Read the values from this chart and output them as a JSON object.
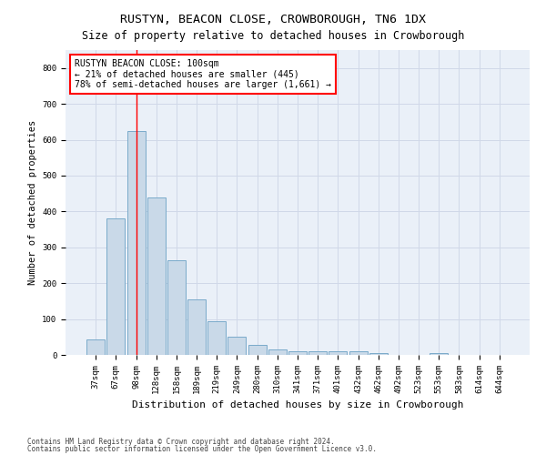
{
  "title": "RUSTYN, BEACON CLOSE, CROWBOROUGH, TN6 1DX",
  "subtitle": "Size of property relative to detached houses in Crowborough",
  "xlabel": "Distribution of detached houses by size in Crowborough",
  "ylabel": "Number of detached properties",
  "footnote1": "Contains HM Land Registry data © Crown copyright and database right 2024.",
  "footnote2": "Contains public sector information licensed under the Open Government Licence v3.0.",
  "categories": [
    "37sqm",
    "67sqm",
    "98sqm",
    "128sqm",
    "158sqm",
    "189sqm",
    "219sqm",
    "249sqm",
    "280sqm",
    "310sqm",
    "341sqm",
    "371sqm",
    "401sqm",
    "432sqm",
    "462sqm",
    "492sqm",
    "523sqm",
    "553sqm",
    "583sqm",
    "614sqm",
    "644sqm"
  ],
  "values": [
    42,
    380,
    625,
    438,
    265,
    155,
    95,
    52,
    28,
    15,
    10,
    10,
    10,
    10,
    5,
    0,
    0,
    5,
    0,
    0,
    0
  ],
  "bar_color": "#c9d9e8",
  "bar_edge_color": "#7aaaca",
  "vline_x_index": 2,
  "vline_color": "red",
  "annotation_line1": "RUSTYN BEACON CLOSE: 100sqm",
  "annotation_line2": "← 21% of detached houses are smaller (445)",
  "annotation_line3": "78% of semi-detached houses are larger (1,661) →",
  "annotation_box_color": "white",
  "annotation_box_edge_color": "red",
  "ylim": [
    0,
    850
  ],
  "yticks": [
    0,
    100,
    200,
    300,
    400,
    500,
    600,
    700,
    800
  ],
  "grid_color": "#d0d8e8",
  "bg_color": "#eaf0f8",
  "title_fontsize": 9.5,
  "subtitle_fontsize": 8.5,
  "tick_fontsize": 6.5,
  "xlabel_fontsize": 8,
  "ylabel_fontsize": 7.5,
  "annotation_fontsize": 7,
  "footnote_fontsize": 5.5
}
